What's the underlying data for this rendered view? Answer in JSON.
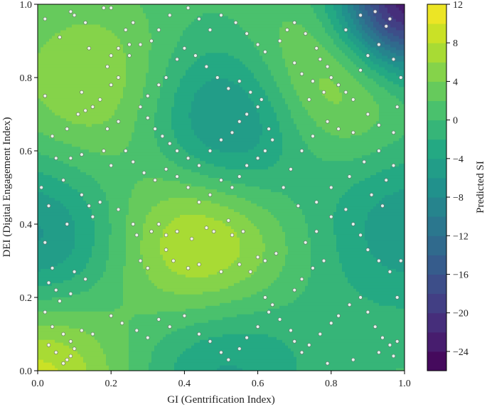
{
  "chart_data": {
    "type": "heatmap",
    "subtype": "filled-contour-with-scatter",
    "title": "",
    "xlabel": "GI (Gentrification Index)",
    "ylabel": "DEI (Digital Engagement Index)",
    "xlim": [
      0.0,
      1.0
    ],
    "ylim": [
      0.0,
      1.0
    ],
    "x_ticks": [
      "0.0",
      "0.2",
      "0.4",
      "0.6",
      "0.8",
      "1.0"
    ],
    "y_ticks": [
      "0.0",
      "0.2",
      "0.4",
      "0.6",
      "0.8",
      "1.0"
    ],
    "colorbar": {
      "label": "Predicted SI",
      "range": [
        -26,
        12
      ],
      "level_step": 2,
      "ticks": [
        "12",
        "8",
        "4",
        "0",
        "−4",
        "−8",
        "−12",
        "−16",
        "−20",
        "−24"
      ],
      "colormap": "viridis"
    },
    "grid": false,
    "legend": "none",
    "surface_features": [
      {
        "kind": "max",
        "x": 0.15,
        "y": 0.78,
        "value": 6
      },
      {
        "kind": "max",
        "x": 0.79,
        "y": 0.8,
        "value": 8
      },
      {
        "kind": "max",
        "x": 0.45,
        "y": 0.35,
        "value": 10
      },
      {
        "kind": "max",
        "x": 0.0,
        "y": 0.0,
        "value": 9
      },
      {
        "kind": "min",
        "x": 0.53,
        "y": 0.67,
        "value": -10
      },
      {
        "kind": "min",
        "x": 0.0,
        "y": 0.35,
        "value": -8
      },
      {
        "kind": "min",
        "x": 0.5,
        "y": 0.04,
        "value": -6
      },
      {
        "kind": "min",
        "x": 1.0,
        "y": 0.4,
        "value": -6
      },
      {
        "kind": "min",
        "x": 1.0,
        "y": 1.0,
        "value": -25
      }
    ],
    "points": [
      [
        0.02,
        0.96
      ],
      [
        0.06,
        0.91
      ],
      [
        0.09,
        0.98
      ],
      [
        0.1,
        0.97
      ],
      [
        0.13,
        0.95
      ],
      [
        0.18,
        0.99
      ],
      [
        0.2,
        0.99
      ],
      [
        0.24,
        0.93
      ],
      [
        0.26,
        0.95
      ],
      [
        0.22,
        0.88
      ],
      [
        0.25,
        0.89
      ],
      [
        0.28,
        0.89
      ],
      [
        0.14,
        0.88
      ],
      [
        0.2,
        0.86
      ],
      [
        0.19,
        0.83
      ],
      [
        0.25,
        0.86
      ],
      [
        0.12,
        0.76
      ],
      [
        0.15,
        0.72
      ],
      [
        0.17,
        0.74
      ],
      [
        0.13,
        0.71
      ],
      [
        0.11,
        0.7
      ],
      [
        0.22,
        0.8
      ],
      [
        0.2,
        0.78
      ],
      [
        0.02,
        0.75
      ],
      [
        0.04,
        0.64
      ],
      [
        0.09,
        0.58
      ],
      [
        0.12,
        0.59
      ],
      [
        0.18,
        0.6
      ],
      [
        0.2,
        0.56
      ],
      [
        0.07,
        0.52
      ],
      [
        0.12,
        0.48
      ],
      [
        0.14,
        0.45
      ],
      [
        0.17,
        0.46
      ],
      [
        0.08,
        0.4
      ],
      [
        0.15,
        0.42
      ],
      [
        0.22,
        0.44
      ],
      [
        0.26,
        0.4
      ],
      [
        0.27,
        0.37
      ],
      [
        0.31,
        0.38
      ],
      [
        0.33,
        0.4
      ],
      [
        0.35,
        0.37
      ],
      [
        0.38,
        0.38
      ],
      [
        0.42,
        0.36
      ],
      [
        0.46,
        0.39
      ],
      [
        0.48,
        0.38
      ],
      [
        0.53,
        0.37
      ],
      [
        0.56,
        0.38
      ],
      [
        0.52,
        0.41
      ],
      [
        0.28,
        0.3
      ],
      [
        0.3,
        0.28
      ],
      [
        0.35,
        0.33
      ],
      [
        0.37,
        0.3
      ],
      [
        0.41,
        0.28
      ],
      [
        0.44,
        0.29
      ],
      [
        0.5,
        0.27
      ],
      [
        0.55,
        0.29
      ],
      [
        0.58,
        0.27
      ],
      [
        0.6,
        0.31
      ],
      [
        0.62,
        0.3
      ],
      [
        0.65,
        0.32
      ],
      [
        0.02,
        0.35
      ],
      [
        0.04,
        0.28
      ],
      [
        0.03,
        0.24
      ],
      [
        0.05,
        0.22
      ],
      [
        0.06,
        0.19
      ],
      [
        0.09,
        0.21
      ],
      [
        0.1,
        0.27
      ],
      [
        0.13,
        0.25
      ],
      [
        0.02,
        0.16
      ],
      [
        0.04,
        0.12
      ],
      [
        0.07,
        0.1
      ],
      [
        0.09,
        0.08
      ],
      [
        0.05,
        0.05
      ],
      [
        0.08,
        0.03
      ],
      [
        0.09,
        0.04
      ],
      [
        0.1,
        0.06
      ],
      [
        0.07,
        0.02
      ],
      [
        0.03,
        0.07
      ],
      [
        0.12,
        0.11
      ],
      [
        0.15,
        0.1
      ],
      [
        0.2,
        0.15
      ],
      [
        0.23,
        0.13
      ],
      [
        0.27,
        0.11
      ],
      [
        0.3,
        0.09
      ],
      [
        0.33,
        0.14
      ],
      [
        0.36,
        0.12
      ],
      [
        0.4,
        0.15
      ],
      [
        0.44,
        0.1
      ],
      [
        0.47,
        0.08
      ],
      [
        0.5,
        0.05
      ],
      [
        0.52,
        0.03
      ],
      [
        0.55,
        0.06
      ],
      [
        0.57,
        0.09
      ],
      [
        0.6,
        0.12
      ],
      [
        0.63,
        0.16
      ],
      [
        0.64,
        0.18
      ],
      [
        0.62,
        0.2
      ],
      [
        0.66,
        0.14
      ],
      [
        0.69,
        0.11
      ],
      [
        0.7,
        0.08
      ],
      [
        0.72,
        0.05
      ],
      [
        0.74,
        0.07
      ],
      [
        0.77,
        0.1
      ],
      [
        0.8,
        0.13
      ],
      [
        0.82,
        0.15
      ],
      [
        0.85,
        0.18
      ],
      [
        0.88,
        0.2
      ],
      [
        0.9,
        0.16
      ],
      [
        0.92,
        0.12
      ],
      [
        0.94,
        0.09
      ],
      [
        0.96,
        0.07
      ],
      [
        0.97,
        0.04
      ],
      [
        0.98,
        0.08
      ],
      [
        0.93,
        0.05
      ],
      [
        0.86,
        0.03
      ],
      [
        0.79,
        0.02
      ],
      [
        0.7,
        0.22
      ],
      [
        0.72,
        0.25
      ],
      [
        0.75,
        0.28
      ],
      [
        0.78,
        0.3
      ],
      [
        0.73,
        0.35
      ],
      [
        0.76,
        0.38
      ],
      [
        0.8,
        0.42
      ],
      [
        0.84,
        0.44
      ],
      [
        0.86,
        0.4
      ],
      [
        0.88,
        0.37
      ],
      [
        0.9,
        0.33
      ],
      [
        0.93,
        0.3
      ],
      [
        0.96,
        0.27
      ],
      [
        0.94,
        0.45
      ],
      [
        0.91,
        0.48
      ],
      [
        0.95,
        0.52
      ],
      [
        0.97,
        0.56
      ],
      [
        0.93,
        0.6
      ],
      [
        0.89,
        0.57
      ],
      [
        0.85,
        0.53
      ],
      [
        0.8,
        0.5
      ],
      [
        0.76,
        0.46
      ],
      [
        0.71,
        0.45
      ],
      [
        0.67,
        0.5
      ],
      [
        0.69,
        0.55
      ],
      [
        0.72,
        0.6
      ],
      [
        0.75,
        0.64
      ],
      [
        0.79,
        0.68
      ],
      [
        0.82,
        0.66
      ],
      [
        0.86,
        0.65
      ],
      [
        0.9,
        0.7
      ],
      [
        0.93,
        0.67
      ],
      [
        0.97,
        0.65
      ],
      [
        0.3,
        0.69
      ],
      [
        0.32,
        0.66
      ],
      [
        0.34,
        0.64
      ],
      [
        0.36,
        0.62
      ],
      [
        0.38,
        0.6
      ],
      [
        0.41,
        0.58
      ],
      [
        0.44,
        0.56
      ],
      [
        0.47,
        0.6
      ],
      [
        0.5,
        0.63
      ],
      [
        0.53,
        0.65
      ],
      [
        0.55,
        0.68
      ],
      [
        0.57,
        0.7
      ],
      [
        0.6,
        0.72
      ],
      [
        0.61,
        0.74
      ],
      [
        0.58,
        0.76
      ],
      [
        0.55,
        0.79
      ],
      [
        0.52,
        0.77
      ],
      [
        0.49,
        0.8
      ],
      [
        0.46,
        0.83
      ],
      [
        0.43,
        0.86
      ],
      [
        0.4,
        0.88
      ],
      [
        0.38,
        0.85
      ],
      [
        0.35,
        0.8
      ],
      [
        0.33,
        0.78
      ],
      [
        0.3,
        0.75
      ],
      [
        0.28,
        0.72
      ],
      [
        0.63,
        0.66
      ],
      [
        0.64,
        0.63
      ],
      [
        0.62,
        0.6
      ],
      [
        0.6,
        0.58
      ],
      [
        0.57,
        0.56
      ],
      [
        0.55,
        0.53
      ],
      [
        0.53,
        0.5
      ],
      [
        0.5,
        0.52
      ],
      [
        0.47,
        0.48
      ],
      [
        0.44,
        0.46
      ],
      [
        0.41,
        0.5
      ],
      [
        0.38,
        0.53
      ],
      [
        0.35,
        0.55
      ],
      [
        0.32,
        0.52
      ],
      [
        0.29,
        0.54
      ],
      [
        0.26,
        0.57
      ],
      [
        0.24,
        0.6
      ],
      [
        0.66,
        0.9
      ],
      [
        0.68,
        0.93
      ],
      [
        0.7,
        0.95
      ],
      [
        0.73,
        0.92
      ],
      [
        0.76,
        0.88
      ],
      [
        0.77,
        0.85
      ],
      [
        0.79,
        0.83
      ],
      [
        0.8,
        0.8
      ],
      [
        0.82,
        0.78
      ],
      [
        0.84,
        0.76
      ],
      [
        0.86,
        0.74
      ],
      [
        0.78,
        0.76
      ],
      [
        0.75,
        0.79
      ],
      [
        0.72,
        0.81
      ],
      [
        0.7,
        0.84
      ],
      [
        0.74,
        0.74
      ],
      [
        0.88,
        0.82
      ],
      [
        0.9,
        0.86
      ],
      [
        0.93,
        0.89
      ],
      [
        0.95,
        0.94
      ],
      [
        0.96,
        0.96
      ],
      [
        0.92,
        0.98
      ],
      [
        0.88,
        0.97
      ],
      [
        0.84,
        0.93
      ],
      [
        0.6,
        0.89
      ],
      [
        0.62,
        0.87
      ],
      [
        0.57,
        0.92
      ],
      [
        0.54,
        0.95
      ],
      [
        0.5,
        0.97
      ],
      [
        0.47,
        0.93
      ],
      [
        0.44,
        0.96
      ],
      [
        0.41,
        0.99
      ],
      [
        0.36,
        0.97
      ],
      [
        0.33,
        0.93
      ],
      [
        0.31,
        0.9
      ],
      [
        0.19,
        0.66
      ],
      [
        0.22,
        0.68
      ],
      [
        0.08,
        0.66
      ],
      [
        0.05,
        0.58
      ],
      [
        0.01,
        0.5
      ],
      [
        0.03,
        0.45
      ],
      [
        0.98,
        0.72
      ],
      [
        0.99,
        0.8
      ],
      [
        0.97,
        0.85
      ],
      [
        0.99,
        0.3
      ],
      [
        0.98,
        0.2
      ]
    ]
  }
}
